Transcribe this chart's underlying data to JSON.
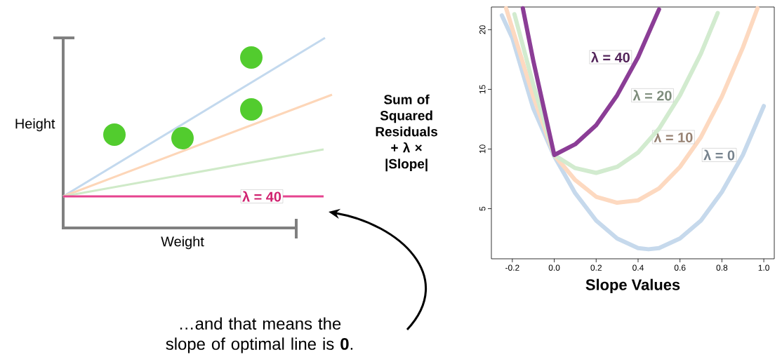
{
  "chart_data": [
    {
      "type": "other",
      "xlabel": "Weight",
      "ylabel": "Height",
      "annotations": [
        "λ = 40",
        "…and that means the slope of optimal line is **0**."
      ]
    },
    {
      "type": "line",
      "xlabel": "Slope Values",
      "ylabel": "Sum of Squared Residuals + λ × |Slope|",
      "xlim": [
        -0.3,
        1.05
      ],
      "ylim": [
        0.8,
        21.9
      ],
      "xticks": [
        -0.2,
        {
          "value": 0,
          "label": "0.0"
        },
        0.2,
        0.4,
        0.6,
        0.8,
        {
          "value": 1,
          "label": "1.0"
        }
      ],
      "yticks": [
        5,
        10,
        15,
        20
      ],
      "series": [
        {
          "name": "λ = 0",
          "color": "#c6d9ec",
          "x": [
            -0.25,
            -0.2,
            -0.1,
            0,
            0.1,
            0.2,
            0.3,
            0.4,
            0.45,
            0.5,
            0.6,
            0.7,
            0.8,
            0.9,
            1.0
          ],
          "values": [
            21.2,
            19.3,
            13.4,
            9.4,
            6.3,
            4.0,
            2.5,
            1.7,
            1.6,
            1.7,
            2.5,
            4.0,
            6.4,
            9.5,
            13.6
          ]
        },
        {
          "name": "λ = 10",
          "color": "#fdd9c0",
          "x": [
            -0.23,
            -0.2,
            -0.1,
            0,
            0.1,
            0.2,
            0.3,
            0.4,
            0.5,
            0.6,
            0.7,
            0.8,
            0.9,
            0.97
          ],
          "values": [
            21.8,
            20.1,
            14.4,
            9.5,
            7.4,
            6.0,
            5.5,
            5.7,
            6.7,
            8.5,
            11.0,
            14.4,
            18.5,
            21.8
          ]
        },
        {
          "name": "λ = 20",
          "color": "#d2ebcf",
          "x": [
            -0.19,
            -0.1,
            0,
            0.1,
            0.2,
            0.3,
            0.4,
            0.5,
            0.6,
            0.7,
            0.78
          ],
          "values": [
            21.3,
            15.4,
            9.5,
            8.4,
            8.0,
            8.5,
            9.7,
            11.7,
            14.5,
            18.0,
            21.4
          ]
        },
        {
          "name": "λ = 40",
          "color": "#8b3d96",
          "x": [
            -0.15,
            -0.1,
            0,
            0.1,
            0.2,
            0.3,
            0.4,
            0.5
          ],
          "values": [
            21.8,
            17.4,
            9.5,
            10.4,
            12.0,
            14.5,
            17.7,
            21.7
          ]
        }
      ]
    }
  ]
}
